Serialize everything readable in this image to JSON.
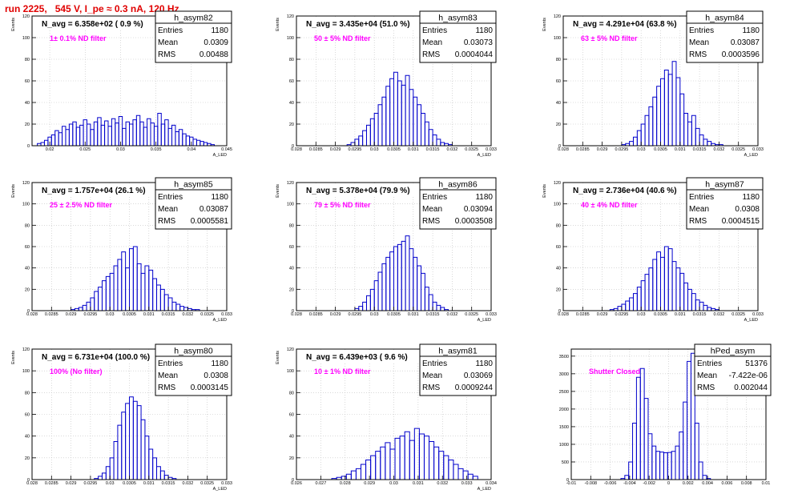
{
  "page_title": "run 2225,   545 V, I_pe ≈ 0.3 nA, 120 Hz",
  "colors": {
    "hist_line": "#0000cc",
    "annotation": "#ff00ff",
    "title": "#e00000",
    "frame": "#000000",
    "grid": "#c0c0c0"
  },
  "chart_data": [
    {
      "type": "bar",
      "name": "h_asym82",
      "title": "N_avg = 6.358e+02 ( 0.9 %)",
      "note": "1± 0.1% ND filter",
      "xlabel": "A_LED",
      "ylabel": "Events",
      "xlim": [
        0.0175,
        0.045
      ],
      "ylim": [
        0,
        120
      ],
      "xticks": [
        0.02,
        0.025,
        0.03,
        0.035,
        0.04,
        0.045
      ],
      "xtick_labels": [
        "0.02",
        "0.025",
        "0.03",
        "0.035",
        "0.04",
        "0.045"
      ],
      "yticks": [
        0,
        20,
        40,
        60,
        80,
        100,
        120
      ],
      "stats": {
        "Entries": "1180",
        "Mean": "0.0309",
        "RMS": "0.00488"
      },
      "grid": true,
      "x": [
        0.0185,
        0.019,
        0.0195,
        0.02,
        0.0205,
        0.021,
        0.0215,
        0.022,
        0.0225,
        0.023,
        0.0235,
        0.024,
        0.0245,
        0.025,
        0.0255,
        0.026,
        0.0265,
        0.027,
        0.0275,
        0.028,
        0.0285,
        0.029,
        0.0295,
        0.03,
        0.0305,
        0.031,
        0.0315,
        0.032,
        0.0325,
        0.033,
        0.0335,
        0.034,
        0.0345,
        0.035,
        0.0355,
        0.036,
        0.0365,
        0.037,
        0.0375,
        0.038,
        0.0385,
        0.039,
        0.0395,
        0.04,
        0.0405,
        0.041,
        0.0415,
        0.042,
        0.0425,
        0.043
      ],
      "values": [
        2,
        3,
        5,
        8,
        10,
        14,
        12,
        18,
        15,
        20,
        22,
        17,
        19,
        24,
        20,
        15,
        22,
        26,
        19,
        23,
        18,
        25,
        21,
        27,
        16,
        22,
        20,
        24,
        28,
        22,
        17,
        25,
        21,
        18,
        30,
        20,
        24,
        16,
        19,
        13,
        15,
        11,
        9,
        8,
        6,
        5,
        4,
        3,
        2,
        1
      ]
    },
    {
      "type": "bar",
      "name": "h_asym83",
      "title": "N_avg = 3.435e+04 (51.0 %)",
      "note": "50 ± 5% ND filter",
      "xlabel": "A_LED",
      "ylabel": "Events",
      "xlim": [
        0.028,
        0.033
      ],
      "ylim": [
        0,
        120
      ],
      "xticks": [
        0.028,
        0.0285,
        0.029,
        0.0295,
        0.03,
        0.0305,
        0.031,
        0.0315,
        0.032,
        0.0325,
        0.033
      ],
      "xtick_labels": [
        "0.028",
        "0.0285",
        "0.029",
        "0.0295",
        "0.03",
        "0.0305",
        "0.031",
        "0.0315",
        "0.032",
        "0.0325",
        "0.033"
      ],
      "yticks": [
        0,
        20,
        40,
        60,
        80,
        100,
        120
      ],
      "stats": {
        "Entries": "1180",
        "Mean": "0.03073",
        "RMS": "0.0004044"
      },
      "grid": true,
      "x": [
        0.02935,
        0.02945,
        0.02955,
        0.02965,
        0.02975,
        0.02985,
        0.02995,
        0.03005,
        0.03015,
        0.03025,
        0.03035,
        0.03045,
        0.03055,
        0.03065,
        0.03075,
        0.03085,
        0.03095,
        0.03105,
        0.03115,
        0.03125,
        0.03135,
        0.03145,
        0.03155,
        0.03165,
        0.03175,
        0.03185,
        0.03195
      ],
      "values": [
        1,
        3,
        6,
        9,
        14,
        19,
        25,
        30,
        38,
        45,
        55,
        62,
        68,
        60,
        56,
        65,
        52,
        45,
        38,
        30,
        22,
        15,
        10,
        6,
        3,
        2,
        1
      ]
    },
    {
      "type": "bar",
      "name": "h_asym84",
      "title": "N_avg = 4.291e+04 (63.8 %)",
      "note": "63 ± 5% ND filter",
      "xlabel": "A_LED",
      "ylabel": "Events",
      "xlim": [
        0.028,
        0.033
      ],
      "ylim": [
        0,
        120
      ],
      "xticks": [
        0.028,
        0.0285,
        0.029,
        0.0295,
        0.03,
        0.0305,
        0.031,
        0.0315,
        0.032,
        0.0325,
        0.033
      ],
      "xtick_labels": [
        "0.028",
        "0.0285",
        "0.029",
        "0.0295",
        "0.03",
        "0.0305",
        "0.031",
        "0.0315",
        "0.032",
        "0.0325",
        "0.033"
      ],
      "yticks": [
        0,
        20,
        40,
        60,
        80,
        100,
        120
      ],
      "stats": {
        "Entries": "1180",
        "Mean": "0.03087",
        "RMS": "0.0003596"
      },
      "grid": true,
      "x": [
        0.02955,
        0.02965,
        0.02975,
        0.02985,
        0.02995,
        0.03005,
        0.03015,
        0.03025,
        0.03035,
        0.03045,
        0.03055,
        0.03065,
        0.03075,
        0.03085,
        0.03095,
        0.03105,
        0.03115,
        0.03125,
        0.03135,
        0.03145,
        0.03155,
        0.03165,
        0.03175,
        0.03185,
        0.03195,
        0.03205
      ],
      "values": [
        1,
        2,
        4,
        8,
        14,
        20,
        28,
        36,
        45,
        55,
        62,
        70,
        66,
        78,
        63,
        48,
        30,
        22,
        28,
        16,
        10,
        6,
        4,
        2,
        1,
        1
      ]
    },
    {
      "type": "bar",
      "name": "h_asym85",
      "title": "N_avg = 1.757e+04 (26.1 %)",
      "note": "25 ± 2.5% ND filter",
      "xlabel": "A_LED",
      "ylabel": "Events",
      "xlim": [
        0.028,
        0.033
      ],
      "ylim": [
        0,
        120
      ],
      "xticks": [
        0.028,
        0.0285,
        0.029,
        0.0295,
        0.03,
        0.0305,
        0.031,
        0.0315,
        0.032,
        0.0325,
        0.033
      ],
      "xtick_labels": [
        "0.028",
        "0.0285",
        "0.029",
        "0.0295",
        "0.03",
        "0.0305",
        "0.031",
        "0.0315",
        "0.032",
        "0.0325",
        "0.033"
      ],
      "yticks": [
        0,
        20,
        40,
        60,
        80,
        100,
        120
      ],
      "stats": {
        "Entries": "1180",
        "Mean": "0.03087",
        "RMS": "0.0005581"
      },
      "grid": true,
      "x": [
        0.02905,
        0.02915,
        0.02925,
        0.02935,
        0.02945,
        0.02955,
        0.02965,
        0.02975,
        0.02985,
        0.02995,
        0.03005,
        0.03015,
        0.03025,
        0.03035,
        0.03045,
        0.03055,
        0.03065,
        0.03075,
        0.03085,
        0.03095,
        0.03105,
        0.03115,
        0.03125,
        0.03135,
        0.03145,
        0.03155,
        0.03165,
        0.03175,
        0.03185,
        0.03195,
        0.03205,
        0.03215,
        0.03225
      ],
      "values": [
        1,
        2,
        3,
        5,
        8,
        12,
        18,
        22,
        28,
        32,
        35,
        42,
        48,
        55,
        40,
        58,
        60,
        44,
        35,
        42,
        38,
        30,
        24,
        20,
        15,
        12,
        8,
        6,
        4,
        3,
        2,
        1,
        1
      ]
    },
    {
      "type": "bar",
      "name": "h_asym86",
      "title": "N_avg = 5.378e+04 (79.9 %)",
      "note": "79 ± 5% ND filter",
      "xlabel": "A_LED",
      "ylabel": "Events",
      "xlim": [
        0.028,
        0.033
      ],
      "ylim": [
        0,
        120
      ],
      "xticks": [
        0.028,
        0.0285,
        0.029,
        0.0295,
        0.03,
        0.0305,
        0.031,
        0.0315,
        0.032,
        0.0325,
        0.033
      ],
      "xtick_labels": [
        "0.028",
        "0.0285",
        "0.029",
        "0.0295",
        "0.03",
        "0.0305",
        "0.031",
        "0.0315",
        "0.032",
        "0.0325",
        "0.033"
      ],
      "yticks": [
        0,
        20,
        40,
        60,
        80,
        100,
        120
      ],
      "stats": {
        "Entries": "1180",
        "Mean": "0.03094",
        "RMS": "0.0003508"
      },
      "grid": true,
      "x": [
        0.02955,
        0.02965,
        0.02975,
        0.02985,
        0.02995,
        0.03005,
        0.03015,
        0.03025,
        0.03035,
        0.03045,
        0.03055,
        0.03065,
        0.03075,
        0.03085,
        0.03095,
        0.03105,
        0.03115,
        0.03125,
        0.03135,
        0.03145,
        0.03155,
        0.03165,
        0.03175,
        0.03185
      ],
      "values": [
        2,
        4,
        8,
        14,
        20,
        28,
        36,
        44,
        50,
        55,
        60,
        62,
        65,
        70,
        58,
        50,
        42,
        35,
        22,
        15,
        8,
        5,
        3,
        1
      ]
    },
    {
      "type": "bar",
      "name": "h_asym87",
      "title": "N_avg = 2.736e+04 (40.6 %)",
      "note": "40 ± 4% ND filter",
      "xlabel": "A_LED",
      "ylabel": "Events",
      "xlim": [
        0.028,
        0.033
      ],
      "ylim": [
        0,
        120
      ],
      "xticks": [
        0.028,
        0.0285,
        0.029,
        0.0295,
        0.03,
        0.0305,
        0.031,
        0.0315,
        0.032,
        0.0325,
        0.033
      ],
      "xtick_labels": [
        "0.028",
        "0.0285",
        "0.029",
        "0.0295",
        "0.03",
        "0.0305",
        "0.031",
        "0.0315",
        "0.032",
        "0.0325",
        "0.033"
      ],
      "yticks": [
        0,
        20,
        40,
        60,
        80,
        100,
        120
      ],
      "stats": {
        "Entries": "1180",
        "Mean": "0.0308",
        "RMS": "0.0004515"
      },
      "grid": true,
      "x": [
        0.02925,
        0.02935,
        0.02945,
        0.02955,
        0.02965,
        0.02975,
        0.02985,
        0.02995,
        0.03005,
        0.03015,
        0.03025,
        0.03035,
        0.03045,
        0.03055,
        0.03065,
        0.03075,
        0.03085,
        0.03095,
        0.03105,
        0.03115,
        0.03125,
        0.03135,
        0.03145,
        0.03155,
        0.03165,
        0.03175,
        0.03185,
        0.03195
      ],
      "values": [
        1,
        2,
        4,
        6,
        9,
        12,
        16,
        22,
        28,
        34,
        40,
        48,
        55,
        50,
        60,
        58,
        46,
        40,
        35,
        26,
        20,
        16,
        10,
        8,
        5,
        3,
        2,
        1
      ]
    },
    {
      "type": "bar",
      "name": "h_asym80",
      "title": "N_avg = 6.731e+04 (100.0 %)",
      "note": "100% (No filter)",
      "xlabel": "A_LED",
      "ylabel": "Events",
      "xlim": [
        0.028,
        0.033
      ],
      "ylim": [
        0,
        120
      ],
      "xticks": [
        0.028,
        0.0285,
        0.029,
        0.0295,
        0.03,
        0.0305,
        0.031,
        0.0315,
        0.032,
        0.0325,
        0.033
      ],
      "xtick_labels": [
        "0.028",
        "0.0285",
        "0.029",
        "0.0295",
        "0.03",
        "0.0305",
        "0.031",
        "0.0315",
        "0.032",
        "0.0325",
        "0.033"
      ],
      "yticks": [
        0,
        20,
        40,
        60,
        80,
        100,
        120
      ],
      "stats": {
        "Entries": "1180",
        "Mean": "0.0308",
        "RMS": "0.0003145"
      },
      "grid": true,
      "x": [
        0.02965,
        0.02975,
        0.02985,
        0.02995,
        0.03005,
        0.03015,
        0.03025,
        0.03035,
        0.03045,
        0.03055,
        0.03065,
        0.03075,
        0.03085,
        0.03095,
        0.03105,
        0.03115,
        0.03125,
        0.03135,
        0.03145,
        0.03155,
        0.03165
      ],
      "values": [
        1,
        3,
        6,
        12,
        20,
        35,
        50,
        62,
        70,
        76,
        72,
        68,
        55,
        40,
        28,
        20,
        12,
        8,
        4,
        2,
        1
      ]
    },
    {
      "type": "bar",
      "name": "h_asym81",
      "title": "N_avg = 6.439e+03 ( 9.6 %)",
      "note": "10 ± 1% ND filter",
      "xlabel": "A_LED",
      "ylabel": "Events",
      "xlim": [
        0.026,
        0.034
      ],
      "ylim": [
        0,
        120
      ],
      "xticks": [
        0.026,
        0.027,
        0.028,
        0.029,
        0.03,
        0.031,
        0.032,
        0.033,
        0.034
      ],
      "xtick_labels": [
        "0.026",
        "0.027",
        "0.028",
        "0.029",
        "0.03",
        "0.031",
        "0.032",
        "0.033",
        "0.034"
      ],
      "yticks": [
        0,
        20,
        40,
        60,
        80,
        100,
        120
      ],
      "stats": {
        "Entries": "1180",
        "Mean": "0.03069",
        "RMS": "0.0009244"
      },
      "grid": true,
      "x": [
        0.02755,
        0.02775,
        0.02795,
        0.02815,
        0.02835,
        0.02855,
        0.02875,
        0.02895,
        0.02915,
        0.02935,
        0.02955,
        0.02975,
        0.02995,
        0.03015,
        0.03035,
        0.03055,
        0.03075,
        0.03095,
        0.03115,
        0.03135,
        0.03155,
        0.03175,
        0.03195,
        0.03215,
        0.03235,
        0.03255,
        0.03275,
        0.03295,
        0.03315,
        0.03335
      ],
      "values": [
        1,
        2,
        3,
        5,
        8,
        10,
        14,
        18,
        22,
        26,
        30,
        34,
        28,
        38,
        40,
        44,
        36,
        47,
        42,
        40,
        35,
        30,
        26,
        22,
        18,
        14,
        10,
        8,
        5,
        3
      ]
    },
    {
      "type": "bar",
      "name": "hPed_asym",
      "title": "",
      "note": "Shutter Closed",
      "xlabel": "",
      "ylabel": "",
      "xlim": [
        -0.01,
        0.01
      ],
      "ylim": [
        0,
        3700
      ],
      "xticks": [
        -0.01,
        -0.008,
        -0.006,
        -0.004,
        -0.002,
        0,
        0.002,
        0.004,
        0.006,
        0.008,
        0.01
      ],
      "xtick_labels": [
        "-0.01",
        "-0.008",
        "-0.006",
        "-0.004",
        "-0.002",
        "0",
        "0.002",
        "0.004",
        "0.006",
        "0.008",
        "0.01"
      ],
      "yticks": [
        0,
        500,
        1000,
        1500,
        2000,
        2500,
        3000,
        3500
      ],
      "stats": {
        "Entries": "51376",
        "Mean": "-7.422e-06",
        "RMS": "0.002044"
      },
      "grid": true,
      "x": [
        -0.0047,
        -0.0043,
        -0.0039,
        -0.0035,
        -0.0031,
        -0.0027,
        -0.0023,
        -0.0019,
        -0.0015,
        -0.0011,
        -0.0007,
        -0.0003,
        0.0001,
        0.0005,
        0.0009,
        0.0013,
        0.0017,
        0.0021,
        0.0025,
        0.0029,
        0.0033,
        0.0037,
        0.0041
      ],
      "values": [
        30,
        120,
        500,
        1600,
        2900,
        3150,
        2300,
        1300,
        950,
        800,
        780,
        760,
        770,
        800,
        950,
        1350,
        2200,
        3350,
        3580,
        1600,
        500,
        120,
        30
      ]
    }
  ]
}
